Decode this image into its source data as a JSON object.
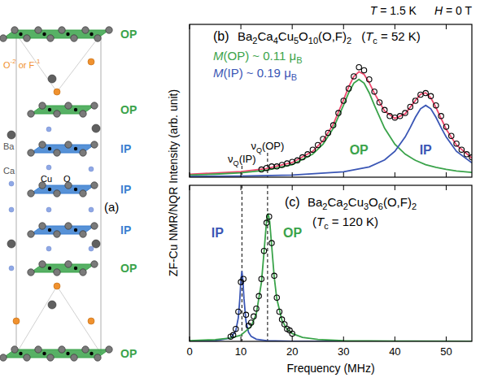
{
  "conditions": [
    "T = 1.5 K",
    "H = 0 T"
  ],
  "y_label": "ZF-Cu NMR/NQR Intensity (arb. unit)",
  "structure": {
    "label": "(a)",
    "layers": [
      {
        "label": "OP",
        "color": "#3aa34a"
      },
      {
        "label": "OP",
        "color": "#3aa34a"
      },
      {
        "label": "IP",
        "color": "#3a7fd0"
      },
      {
        "label": "IP",
        "color": "#3a7fd0"
      },
      {
        "label": "IP",
        "color": "#3a7fd0"
      },
      {
        "label": "OP",
        "color": "#3aa34a"
      },
      {
        "label": "OP",
        "color": "#3aa34a"
      }
    ],
    "atom_labels": [
      {
        "text": "O-2 or F-1",
        "color": "#f0912e"
      },
      {
        "text": "Ba",
        "color": "#555555"
      },
      {
        "text": "Ca",
        "color": "#555555"
      },
      {
        "text": "Cu",
        "color": "#000000"
      },
      {
        "text": "O",
        "color": "#000000"
      }
    ]
  },
  "chart_data": [
    {
      "type": "line",
      "panel": "(b)",
      "title": "Ba2Ca4Cu5O10(O,F)2",
      "subtitle": "(Tc = 52 K)",
      "xlim": [
        0,
        55
      ],
      "xticks": [
        0,
        10,
        20,
        30,
        40,
        50
      ],
      "ylim": [
        0,
        1
      ],
      "tick_labels": false,
      "annotations": [
        {
          "text": "M(OP) ~ 0.11 μB",
          "color": "#3aa34a"
        },
        {
          "text": "M(IP) ~ 0.19 μB",
          "color": "#3a56b5"
        }
      ],
      "reference_lines": [
        {
          "label": "νQ(IP)",
          "x": 10.2
        },
        {
          "label": "νQ(OP)",
          "x": 15.2
        }
      ],
      "series": [
        {
          "type": "line",
          "color": "#ef4a6e",
          "line_style": "solid",
          "x": [
            0,
            10,
            15,
            20,
            24,
            26,
            28,
            30,
            31,
            32,
            33,
            34,
            35,
            36,
            38,
            40,
            42,
            44,
            45,
            46,
            47,
            48,
            50,
            52,
            55
          ],
          "values": [
            0.019,
            0.036,
            0.056,
            0.096,
            0.17,
            0.239,
            0.346,
            0.506,
            0.591,
            0.659,
            0.69,
            0.673,
            0.619,
            0.55,
            0.433,
            0.385,
            0.414,
            0.502,
            0.543,
            0.552,
            0.52,
            0.456,
            0.314,
            0.21,
            0.125
          ]
        },
        {
          "type": "line",
          "name": "OP",
          "color": "#3aa34a",
          "line_style": "solid",
          "x": [
            0,
            5,
            10,
            15,
            20,
            24,
            26,
            28,
            30,
            31,
            32,
            33,
            34,
            35,
            36,
            38,
            40,
            42,
            44,
            46,
            48,
            50,
            52,
            55
          ],
          "values": [
            0.014,
            0.02,
            0.029,
            0.046,
            0.082,
            0.151,
            0.216,
            0.32,
            0.471,
            0.552,
            0.615,
            0.64,
            0.615,
            0.552,
            0.471,
            0.32,
            0.216,
            0.151,
            0.11,
            0.082,
            0.064,
            0.051,
            0.041,
            0.031
          ]
        },
        {
          "type": "line",
          "name": "IP",
          "color": "#3a56b5",
          "line_style": "solid",
          "x": [
            0,
            10,
            20,
            30,
            35,
            38,
            40,
            42,
            43,
            44,
            45,
            46,
            47,
            48,
            49,
            50,
            52,
            55
          ],
          "values": [
            0.005,
            0.007,
            0.014,
            0.035,
            0.067,
            0.113,
            0.169,
            0.263,
            0.325,
            0.392,
            0.448,
            0.47,
            0.448,
            0.392,
            0.325,
            0.263,
            0.169,
            0.094
          ]
        },
        {
          "type": "scatter",
          "marker": "open-circle",
          "color": "#000000",
          "x": [
            14,
            15,
            16,
            17,
            18,
            19,
            20,
            21,
            22,
            23,
            24,
            25,
            26,
            27,
            28,
            29,
            30,
            31,
            32,
            33,
            34,
            35,
            36,
            37,
            38,
            39,
            40,
            41,
            42,
            43,
            44,
            45,
            46,
            47,
            48,
            49,
            50,
            51,
            52,
            53,
            54,
            55
          ],
          "values": [
            0.05,
            0.06,
            0.07,
            0.07,
            0.08,
            0.09,
            0.1,
            0.11,
            0.13,
            0.15,
            0.18,
            0.21,
            0.25,
            0.29,
            0.34,
            0.42,
            0.5,
            0.58,
            0.66,
            0.72,
            0.7,
            0.64,
            0.56,
            0.49,
            0.44,
            0.4,
            0.39,
            0.4,
            0.42,
            0.46,
            0.5,
            0.54,
            0.55,
            0.53,
            0.47,
            0.4,
            0.33,
            0.27,
            0.22,
            0.18,
            0.15,
            0.13
          ]
        }
      ]
    },
    {
      "type": "line",
      "panel": "(c)",
      "title": "Ba2Ca2Cu3O6(O,F)2",
      "subtitle": "(Tc = 120 K)",
      "xlim": [
        0,
        55
      ],
      "xticks": [
        0,
        10,
        20,
        30,
        40,
        50
      ],
      "ylim": [
        0,
        1
      ],
      "tick_labels": "x",
      "x_label": "Frequency (MHz)",
      "reference_lines": [
        {
          "x": 10.2
        },
        {
          "x": 15.2
        }
      ],
      "series": [
        {
          "type": "line",
          "name": "IP",
          "color": "#3a56b5",
          "line_style": "solid",
          "x": [
            0,
            5,
            8,
            9,
            9.5,
            9.8,
            10,
            10.2,
            10.4,
            10.6,
            11,
            11.5,
            12,
            13,
            15,
            20,
            30,
            55
          ],
          "values": [
            0.001,
            0.004,
            0.021,
            0.067,
            0.152,
            0.274,
            0.388,
            0.45,
            0.388,
            0.274,
            0.126,
            0.058,
            0.032,
            0.014,
            0.005,
            0.001,
            0.0003,
            0.0001
          ]
        },
        {
          "type": "line",
          "name": "OP",
          "color": "#3aa34a",
          "line_style": "solid",
          "x": [
            0,
            5,
            8,
            10,
            12,
            13,
            14,
            14.5,
            15,
            15.3,
            15.6,
            16,
            16.5,
            17,
            18,
            19,
            20,
            22,
            25,
            30,
            40,
            55
          ],
          "values": [
            0.005,
            0.011,
            0.022,
            0.04,
            0.096,
            0.176,
            0.377,
            0.568,
            0.772,
            0.82,
            0.772,
            0.612,
            0.41,
            0.272,
            0.135,
            0.078,
            0.05,
            0.025,
            0.012,
            0.005,
            0.002,
            0.001
          ]
        },
        {
          "type": "scatter",
          "marker": "open-circle",
          "color": "#000000",
          "x": [
            8,
            8.5,
            9,
            9.5,
            10,
            10.5,
            11,
            11.5,
            12,
            12.5,
            13,
            13.5,
            14,
            14.5,
            15,
            15.5,
            16,
            16.5,
            17,
            17.5,
            18,
            18.5,
            19,
            19.5,
            20
          ],
          "values": [
            0.03,
            0.04,
            0.08,
            0.19,
            0.38,
            0.4,
            0.17,
            0.1,
            0.12,
            0.16,
            0.21,
            0.29,
            0.4,
            0.58,
            0.76,
            0.8,
            0.63,
            0.42,
            0.28,
            0.19,
            0.14,
            0.11,
            0.08,
            0.07,
            0.05
          ]
        }
      ]
    }
  ]
}
